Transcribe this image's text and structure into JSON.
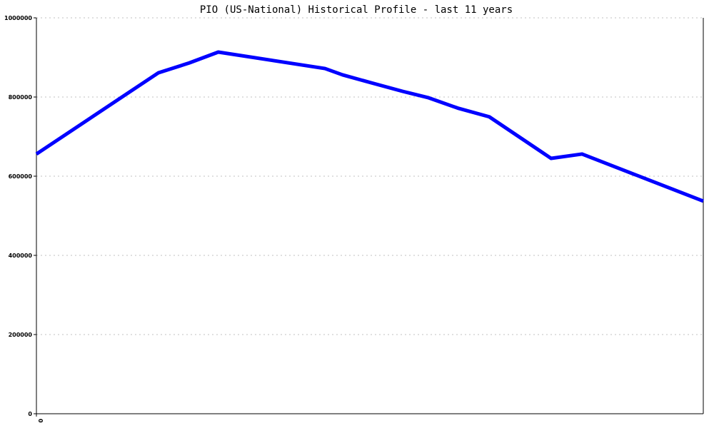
{
  "chart_data": {
    "type": "line",
    "title": "PIO (US-National) Historical Profile - last 11 years",
    "xlabel": "",
    "ylabel": "",
    "ylim": [
      0,
      1000000
    ],
    "xlim": [
      0,
      11
    ],
    "y_ticks": [
      "0",
      "200000",
      "400000",
      "600000",
      "800000",
      "1000000"
    ],
    "x_ticks": [
      "0"
    ],
    "grid": "horizontal dotted",
    "line_color": "#0000ff",
    "series": [
      {
        "x": [
          0,
          2.01,
          2.52,
          3.0,
          4.76,
          5.05,
          5.52,
          6.05,
          6.47,
          6.95,
          7.47,
          8.49,
          9.0,
          11
        ],
        "y": [
          656000,
          861000,
          886000,
          913500,
          872000,
          856000,
          836000,
          814000,
          798000,
          772000,
          750000,
          645000,
          656000,
          537000
        ]
      }
    ]
  }
}
